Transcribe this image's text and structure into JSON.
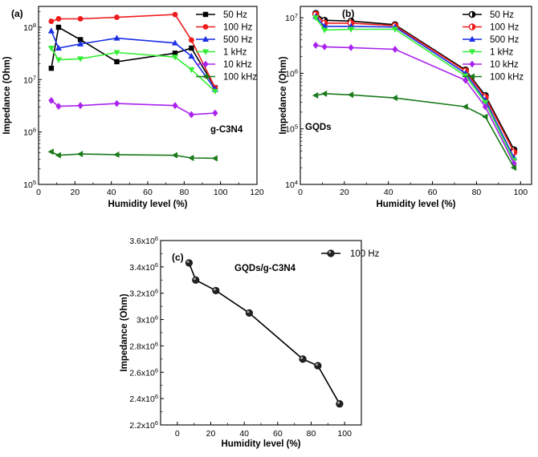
{
  "chart_data": [
    {
      "type": "line",
      "panel_label": "(a)",
      "annotation": "g-C3N4",
      "xlabel": "Humidity level (%)",
      "ylabel": "Impedance (Ohm)",
      "xlim": [
        0,
        120
      ],
      "x_ticks": [
        0,
        20,
        40,
        60,
        80,
        100,
        120
      ],
      "yscale": "log",
      "ylim": [
        100000,
        250000000
      ],
      "y_ticks": [
        {
          "value": 100000,
          "mantissa": "10",
          "exponent": "5"
        },
        {
          "value": 1000000,
          "mantissa": "10",
          "exponent": "6"
        },
        {
          "value": 10000000,
          "mantissa": "10",
          "exponent": "7"
        },
        {
          "value": 100000000,
          "mantissa": "10",
          "exponent": "8"
        }
      ],
      "legend_position": "top-right",
      "series": [
        {
          "name": "50 Hz",
          "color": "#000000",
          "marker": "square",
          "x": [
            7,
            11,
            23,
            43,
            75,
            84,
            97
          ],
          "values": [
            16500000,
            100000000,
            58000000,
            22000000,
            32000000,
            40000000,
            7000000
          ]
        },
        {
          "name": "100 Hz",
          "color": "#ee1c1c",
          "marker": "circle",
          "x": [
            7,
            11,
            23,
            43,
            75,
            84,
            97
          ],
          "values": [
            130000000,
            145000000,
            145000000,
            155000000,
            175000000,
            57000000,
            7000000
          ]
        },
        {
          "name": "500 Hz",
          "color": "#1a2fe6",
          "marker": "triangle-up",
          "x": [
            7,
            11,
            23,
            43,
            75,
            84,
            97
          ],
          "values": [
            85000000,
            40000000,
            48000000,
            62000000,
            50000000,
            28000000,
            6500000
          ]
        },
        {
          "name": "1 kHz",
          "color": "#33ee33",
          "marker": "triangle-down",
          "x": [
            7,
            11,
            23,
            43,
            75,
            84,
            97
          ],
          "values": [
            40000000,
            24000000,
            25000000,
            33000000,
            27000000,
            15500000,
            6000000
          ]
        },
        {
          "name": "10 kHz",
          "color": "#aa22ee",
          "marker": "diamond",
          "x": [
            7,
            11,
            23,
            43,
            75,
            84,
            97
          ],
          "values": [
            4000000,
            3100000,
            3200000,
            3500000,
            3200000,
            2150000,
            2300000
          ]
        },
        {
          "name": "100 kHz",
          "color": "#1a7a1a",
          "marker": "triangle-left",
          "x": [
            7,
            11,
            23,
            43,
            75,
            84,
            97
          ],
          "values": [
            420000,
            360000,
            380000,
            370000,
            360000,
            320000,
            315000
          ]
        }
      ]
    },
    {
      "type": "line",
      "panel_label": "(b)",
      "annotation": "GQDs",
      "xlabel": "Humidity level (%)",
      "ylabel": "Impedance (Ohm)",
      "xlim": [
        0,
        105
      ],
      "x_ticks": [
        0,
        20,
        40,
        60,
        80,
        100
      ],
      "yscale": "log",
      "ylim": [
        10000,
        16000000
      ],
      "y_ticks": [
        {
          "value": 10000,
          "mantissa": "10",
          "exponent": "4"
        },
        {
          "value": 100000,
          "mantissa": "10",
          "exponent": "5"
        },
        {
          "value": 1000000,
          "mantissa": "10",
          "exponent": "6"
        },
        {
          "value": 10000000,
          "mantissa": "10",
          "exponent": "7"
        }
      ],
      "legend_position": "top-right",
      "series": [
        {
          "name": "50 Hz",
          "color": "#000000",
          "marker": "circle-half",
          "x": [
            7,
            11,
            23,
            43,
            75,
            84,
            97
          ],
          "values": [
            12000000,
            9000000,
            8700000,
            7500000,
            1150000,
            400000,
            42000
          ]
        },
        {
          "name": "100 Hz",
          "color": "#ee1c1c",
          "marker": "circle-half",
          "x": [
            7,
            11,
            23,
            43,
            75,
            84,
            97
          ],
          "values": [
            11500000,
            8000000,
            8000000,
            7200000,
            1100000,
            370000,
            38000
          ]
        },
        {
          "name": "500 Hz",
          "color": "#1a2fe6",
          "marker": "triangle-up",
          "x": [
            7,
            11,
            23,
            43,
            75,
            84,
            97
          ],
          "values": [
            10500000,
            7000000,
            7000000,
            6800000,
            1000000,
            330000,
            30000
          ]
        },
        {
          "name": "1 kHz",
          "color": "#33ee33",
          "marker": "triangle-down",
          "x": [
            7,
            11,
            23,
            43,
            75,
            84,
            97
          ],
          "values": [
            10000000,
            6000000,
            6200000,
            6200000,
            900000,
            300000,
            27000
          ]
        },
        {
          "name": "10 kHz",
          "color": "#aa22ee",
          "marker": "diamond",
          "x": [
            7,
            11,
            23,
            43,
            75,
            84,
            97
          ],
          "values": [
            3200000,
            3000000,
            2900000,
            2700000,
            750000,
            250000,
            24000
          ]
        },
        {
          "name": "100 kHz",
          "color": "#1a7a1a",
          "marker": "triangle-left",
          "x": [
            7,
            11,
            23,
            43,
            75,
            84,
            97
          ],
          "values": [
            400000,
            430000,
            410000,
            360000,
            250000,
            165000,
            20000
          ]
        }
      ]
    },
    {
      "type": "line",
      "panel_label": "(c)",
      "annotation": "GQDs/g-C3N4",
      "xlabel": "Humidity level (%)",
      "ylabel": "Impedance (Ohm)",
      "xlim": [
        -10,
        110
      ],
      "x_ticks": [
        0,
        20,
        40,
        60,
        80,
        100
      ],
      "yscale": "linear",
      "ylim": [
        2200000,
        3600000
      ],
      "y_ticks": [
        {
          "value": 2200000,
          "mantissa": "2.2x10",
          "exponent": "6"
        },
        {
          "value": 2400000,
          "mantissa": "2.4x10",
          "exponent": "6"
        },
        {
          "value": 2600000,
          "mantissa": "2.6x10",
          "exponent": "6"
        },
        {
          "value": 2800000,
          "mantissa": "2.8x10",
          "exponent": "6"
        },
        {
          "value": 3000000,
          "mantissa": "3x10",
          "exponent": "6"
        },
        {
          "value": 3200000,
          "mantissa": "3.2x10",
          "exponent": "6"
        },
        {
          "value": 3400000,
          "mantissa": "3.4x10",
          "exponent": "6"
        },
        {
          "value": 3600000,
          "mantissa": "3.6x10",
          "exponent": "6"
        }
      ],
      "legend_position": "top-right",
      "series": [
        {
          "name": "100 Hz",
          "color": "#000000",
          "marker": "sphere",
          "x": [
            7,
            11,
            23,
            43,
            75,
            84,
            97
          ],
          "values": [
            3430000,
            3300000,
            3220000,
            3050000,
            2700000,
            2650000,
            2360000
          ]
        }
      ]
    }
  ]
}
